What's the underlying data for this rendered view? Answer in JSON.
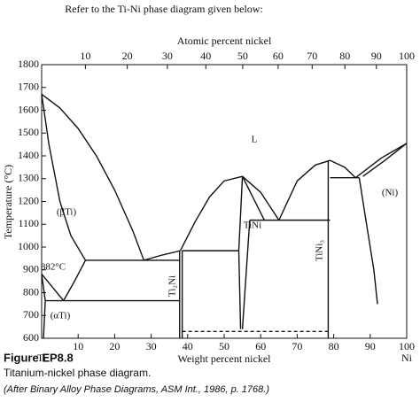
{
  "header": "Refer to the Ti-Ni phase diagram given below:",
  "chart_data": {
    "type": "line",
    "x2label": "Atomic percent nickel",
    "ylabel": "Temperature (°C)",
    "xlabel": "Weight percent nickel",
    "xlim": [
      0,
      100
    ],
    "ylim": [
      600,
      1800
    ],
    "xticks": [
      10,
      20,
      30,
      40,
      50,
      60,
      70,
      80,
      90,
      100
    ],
    "x2ticks": [
      10,
      20,
      30,
      40,
      50,
      60,
      70,
      80,
      90,
      100
    ],
    "yticks": [
      600,
      700,
      800,
      900,
      1000,
      1100,
      1200,
      1300,
      1400,
      1500,
      1600,
      1700,
      1800
    ],
    "end_labels": [
      "Ti",
      "Ni"
    ],
    "annotations": [
      "L",
      "(βTi)",
      "882°C",
      "(αTi)",
      "Ti₂Ni",
      "TiNi",
      "TiNi₃",
      "(Ni)"
    ],
    "color": "#111",
    "series": [
      {
        "x": [
          0,
          5,
          10,
          15,
          20,
          25,
          28
        ],
        "values": [
          1670,
          1610,
          1520,
          1400,
          1250,
          1070,
          942
        ]
      },
      {
        "x": [
          28,
          33,
          38
        ],
        "values": [
          942,
          965,
          984
        ]
      },
      {
        "x": [
          38,
          42,
          46,
          50,
          55
        ],
        "values": [
          984,
          1110,
          1220,
          1290,
          1310
        ]
      },
      {
        "x": [
          55,
          60,
          65
        ],
        "values": [
          1310,
          1240,
          1118
        ]
      },
      {
        "x": [
          65,
          70,
          75,
          79
        ],
        "values": [
          1118,
          1290,
          1360,
          1380
        ]
      },
      {
        "x": [
          79,
          83,
          86
        ],
        "values": [
          1380,
          1350,
          1304
        ]
      },
      {
        "x": [
          86,
          93,
          100
        ],
        "values": [
          1304,
          1390,
          1455
        ]
      },
      {
        "x": [
          88,
          94,
          100
        ],
        "values": [
          1310,
          1380,
          1455
        ]
      },
      {
        "x": [
          0,
          2,
          5,
          8,
          12
        ],
        "values": [
          1670,
          1450,
          1200,
          1050,
          942
        ]
      },
      {
        "x": [
          12,
          38
        ],
        "values": [
          942,
          942
        ]
      },
      {
        "x": [
          0,
          6
        ],
        "values": [
          882,
          765
        ]
      },
      {
        "x": [
          6,
          9,
          12
        ],
        "values": [
          765,
          850,
          942
        ]
      },
      {
        "x": [
          0,
          1
        ],
        "values": [
          882,
          765
        ]
      },
      {
        "x": [
          1,
          38
        ],
        "values": [
          765,
          765
        ]
      },
      {
        "x": [
          1,
          0.5
        ],
        "values": [
          765,
          600
        ]
      },
      {
        "x": [
          37.8,
          37.8
        ],
        "values": [
          600,
          984
        ]
      },
      {
        "x": [
          38.5,
          38.5
        ],
        "values": [
          600,
          984
        ]
      },
      {
        "x": [
          38.5,
          54
        ],
        "values": [
          984,
          984
        ]
      },
      {
        "x": [
          55,
          54
        ],
        "values": [
          1310,
          984
        ]
      },
      {
        "x": [
          54,
          54.5
        ],
        "values": [
          984,
          640
        ]
      },
      {
        "x": [
          55,
          61
        ],
        "values": [
          1310,
          1118
        ]
      },
      {
        "x": [
          57,
          55
        ],
        "values": [
          1118,
          640
        ]
      },
      {
        "x": [
          57,
          79
        ],
        "values": [
          1118,
          1118
        ]
      },
      {
        "x": [
          78.5,
          78.5
        ],
        "values": [
          600,
          1380
        ]
      },
      {
        "x": [
          79,
          87
        ],
        "values": [
          1304,
          1304
        ]
      },
      {
        "x": [
          87,
          89,
          91,
          92
        ],
        "values": [
          1304,
          1100,
          900,
          750
        ]
      },
      {
        "x": [
          38.5,
          78.5
        ],
        "values": [
          630,
          630
        ],
        "dash": true
      }
    ]
  },
  "caption": {
    "label": "Figure EP8.8",
    "text": "Titanium-nickel phase diagram.",
    "source": "(After Binary Alloy Phase Diagrams, ASM Int., 1986, p. 1768.)"
  }
}
